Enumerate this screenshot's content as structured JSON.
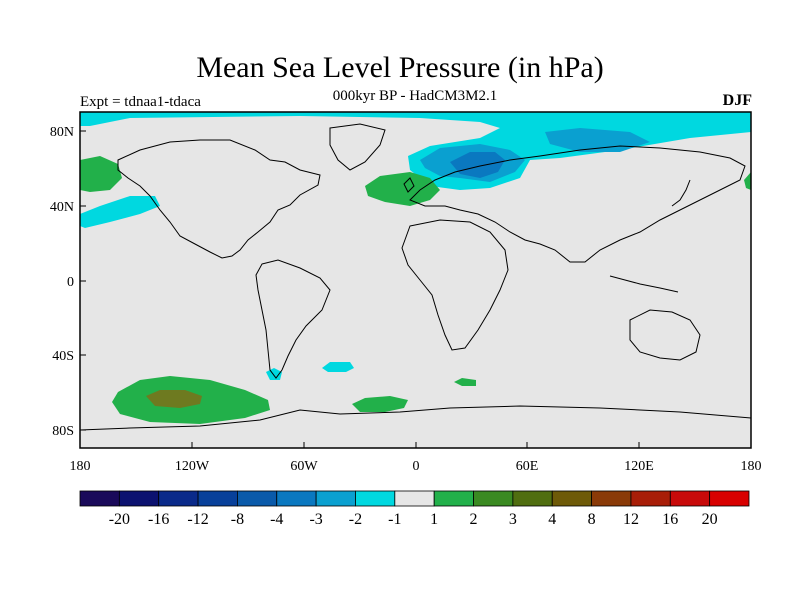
{
  "figure": {
    "title": "Mean Sea Level Pressure (in hPa)",
    "subtitle": "000kyr BP - HadCM3M2.1",
    "left_label": "Expt = tdnaa1-tdaca",
    "right_label": "DJF"
  },
  "axes": {
    "lat_ticks": [
      "80N",
      "40N",
      "0",
      "40S",
      "80S"
    ],
    "lon_ticks": [
      "180",
      "120W",
      "60W",
      "0",
      "60E",
      "120E",
      "180"
    ]
  },
  "colorbar": {
    "labels": [
      "-20",
      "-16",
      "-12",
      "-8",
      "-4",
      "-3",
      "-2",
      "-1",
      "1",
      "2",
      "3",
      "4",
      "8",
      "12",
      "16",
      "20"
    ],
    "colors": [
      "#1a0a5a",
      "#0c1270",
      "#0a2a8a",
      "#08409a",
      "#0a5aaa",
      "#0a78c0",
      "#0aa0d0",
      "#00d8e0",
      "#e6e6e6",
      "#22b04a",
      "#3a8a22",
      "#506e10",
      "#6e5a08",
      "#8a3a08",
      "#a81e08",
      "#c80a0a",
      "#d80000"
    ]
  },
  "map_colors": {
    "background": "#e6e6e6",
    "cyan": "#00d8e0",
    "mid_blue": "#0aa0d0",
    "blue": "#0a78c0",
    "green": "#22b04a",
    "dark_green": "#3a8a22",
    "olive": "#6e7a20"
  }
}
